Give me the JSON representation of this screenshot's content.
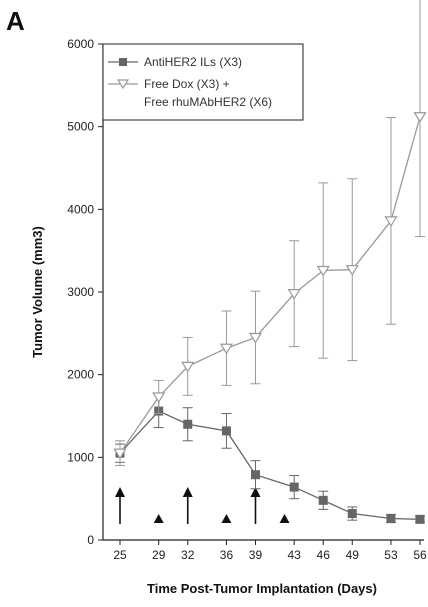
{
  "panel_label": "A",
  "chart_data": {
    "type": "line",
    "title": "",
    "xlabel": "Time Post-Tumor Implantation (Days)",
    "ylabel": "Tumor Volume (mm3)",
    "x": [
      25,
      29,
      32,
      36,
      39,
      43,
      46,
      49,
      53,
      56
    ],
    "xticks": [
      "25",
      "29",
      "32",
      "36",
      "39",
      "43",
      "46",
      "49",
      "53",
      "56"
    ],
    "yticks": [
      0,
      1000,
      2000,
      3000,
      4000,
      5000,
      6000
    ],
    "ylim": [
      0,
      6000
    ],
    "grid": false,
    "legend_position": "top-left",
    "series": [
      {
        "name": "AntiHER2 ILs (X3)",
        "marker": "square",
        "color": "#666666",
        "values": [
          1050,
          1560,
          1400,
          1320,
          790,
          640,
          480,
          320,
          260,
          250
        ],
        "errors": [
          110,
          200,
          200,
          210,
          170,
          140,
          110,
          80,
          50,
          40
        ]
      },
      {
        "name": "Free Dox (X3) + Free rhuMAbHER2 (X6)",
        "name_lines": [
          "Free Dox (X3) +",
          "Free rhuMAbHER2 (X6)"
        ],
        "marker": "triangle-down-open",
        "color": "#999999",
        "values": [
          1050,
          1730,
          2100,
          2320,
          2450,
          2980,
          3260,
          3270,
          3860,
          5120
        ],
        "errors": [
          150,
          200,
          350,
          450,
          560,
          640,
          1060,
          1100,
          1250,
          1450
        ]
      }
    ],
    "annotations": {
      "large_arrows_at_day": [
        25,
        32,
        39
      ],
      "small_arrowheads_at_day": [
        29,
        36,
        42
      ]
    }
  }
}
